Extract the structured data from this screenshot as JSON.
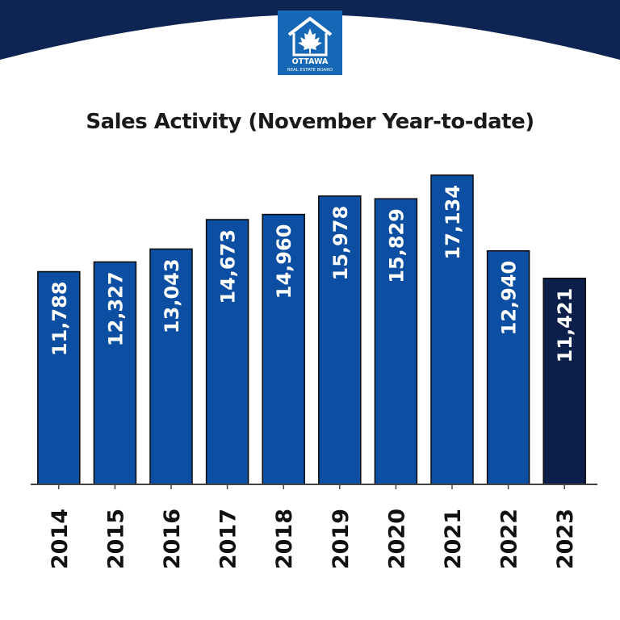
{
  "logo": {
    "line1": "OTTAWA",
    "line2": "REAL ESTATE BOARD"
  },
  "colors": {
    "header": "#0e2453",
    "bar": "#0b4ea2",
    "bar_highlight": "#0c1f4b",
    "axis": "#444444",
    "label_text": "#ffffff"
  },
  "chart_data": {
    "type": "bar",
    "title": "Sales Activity (November Year-to-date)",
    "xlabel": "",
    "ylabel": "",
    "grid": false,
    "highlight_category": "2023",
    "categories": [
      "2014",
      "2015",
      "2016",
      "2017",
      "2018",
      "2019",
      "2020",
      "2021",
      "2022",
      "2023"
    ],
    "values": [
      11788,
      12327,
      13043,
      14673,
      14960,
      15978,
      15829,
      17134,
      12940,
      11421
    ],
    "value_labels": [
      "11,788",
      "12,327",
      "13,043",
      "14,673",
      "14,960",
      "15,978",
      "15,829",
      "17,134",
      "12,940",
      "11,421"
    ]
  }
}
